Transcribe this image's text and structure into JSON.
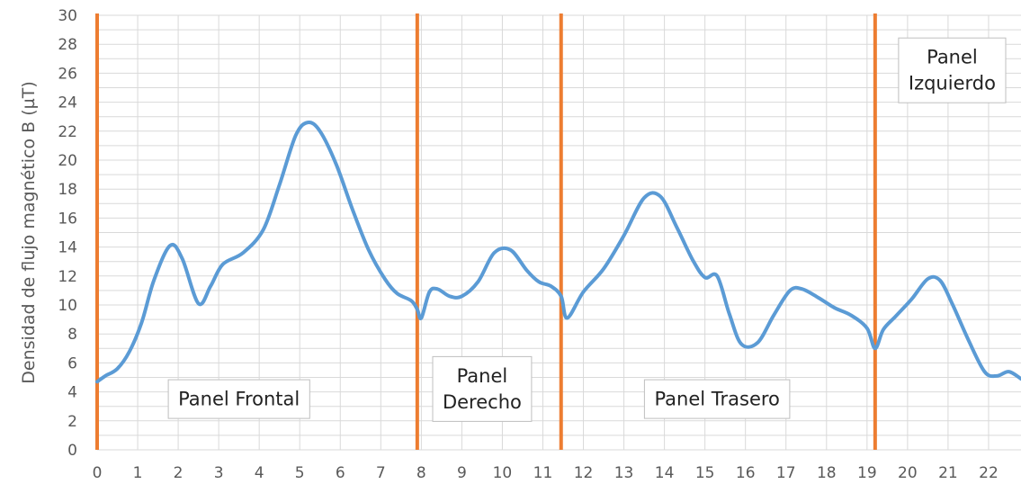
{
  "chart_data": {
    "type": "line",
    "title": "",
    "xlabel": "",
    "ylabel": "Densidad de flujo magnético B (µT)",
    "xlim": [
      0,
      22.8
    ],
    "ylim": [
      0,
      30
    ],
    "x_ticks": [
      "0",
      "1",
      "2",
      "3",
      "4",
      "5",
      "6",
      "7",
      "8",
      "9",
      "10",
      "11",
      "12",
      "13",
      "14",
      "15",
      "16",
      "17",
      "18",
      "19",
      "20",
      "21",
      "22"
    ],
    "y_ticks": [
      "0",
      "2",
      "4",
      "6",
      "8",
      "10",
      "12",
      "14",
      "16",
      "18",
      "20",
      "22",
      "24",
      "26",
      "28",
      "30"
    ],
    "grid": true,
    "colors": {
      "series": "#5b9bd5",
      "divider": "#ed7d31",
      "grid": "#d9d9d9"
    },
    "series": [
      {
        "x": [
          0,
          0.2,
          0.5,
          0.8,
          1.1,
          1.4,
          1.8,
          2.1,
          2.5,
          2.8,
          3.1,
          3.6,
          4.1,
          4.5,
          4.9,
          5.2,
          5.5,
          5.9,
          6.3,
          6.7,
          7.1,
          7.4,
          7.75,
          7.9,
          8.0,
          8.2,
          8.4,
          8.7,
          9.0,
          9.4,
          9.8,
          10.2,
          10.6,
          10.9,
          11.2,
          11.45,
          11.6,
          12.0,
          12.5,
          13.0,
          13.5,
          13.9,
          14.3,
          14.7,
          15.0,
          15.3,
          15.6,
          15.9,
          16.3,
          16.7,
          17.1,
          17.4,
          17.8,
          18.2,
          18.6,
          19.0,
          19.2,
          19.4,
          19.7,
          20.1,
          20.5,
          20.8,
          21.1,
          21.5,
          21.9,
          22.2,
          22.5,
          22.8
        ],
        "values": [
          4.7,
          5.1,
          5.6,
          6.8,
          8.8,
          11.7,
          14.1,
          13.2,
          10.1,
          11.3,
          12.8,
          13.6,
          15.2,
          18.3,
          21.7,
          22.6,
          22.0,
          19.7,
          16.6,
          13.8,
          11.8,
          10.8,
          10.3,
          9.7,
          9.1,
          10.9,
          11.1,
          10.6,
          10.6,
          11.6,
          13.6,
          13.8,
          12.4,
          11.6,
          11.3,
          10.6,
          9.1,
          10.9,
          12.5,
          14.8,
          17.4,
          17.5,
          15.4,
          13.1,
          11.9,
          12.0,
          9.4,
          7.3,
          7.4,
          9.3,
          11.0,
          11.1,
          10.5,
          9.8,
          9.3,
          8.4,
          7.0,
          8.3,
          9.2,
          10.4,
          11.8,
          11.7,
          10.1,
          7.6,
          5.4,
          5.1,
          5.4,
          4.9
        ]
      }
    ],
    "dividers_x": [
      0,
      7.9,
      11.45,
      19.2
    ],
    "annotations": [
      {
        "text_lines": [
          "Panel Frontal"
        ],
        "x": 3.5,
        "y": 3.5
      },
      {
        "text_lines": [
          "Panel",
          "Derecho"
        ],
        "x": 9.5,
        "y": 4.2
      },
      {
        "text_lines": [
          "Panel Trasero"
        ],
        "x": 15.3,
        "y": 3.5
      },
      {
        "text_lines": [
          "Panel",
          "Izquierdo"
        ],
        "x": 21.1,
        "y": 26.2
      }
    ]
  }
}
